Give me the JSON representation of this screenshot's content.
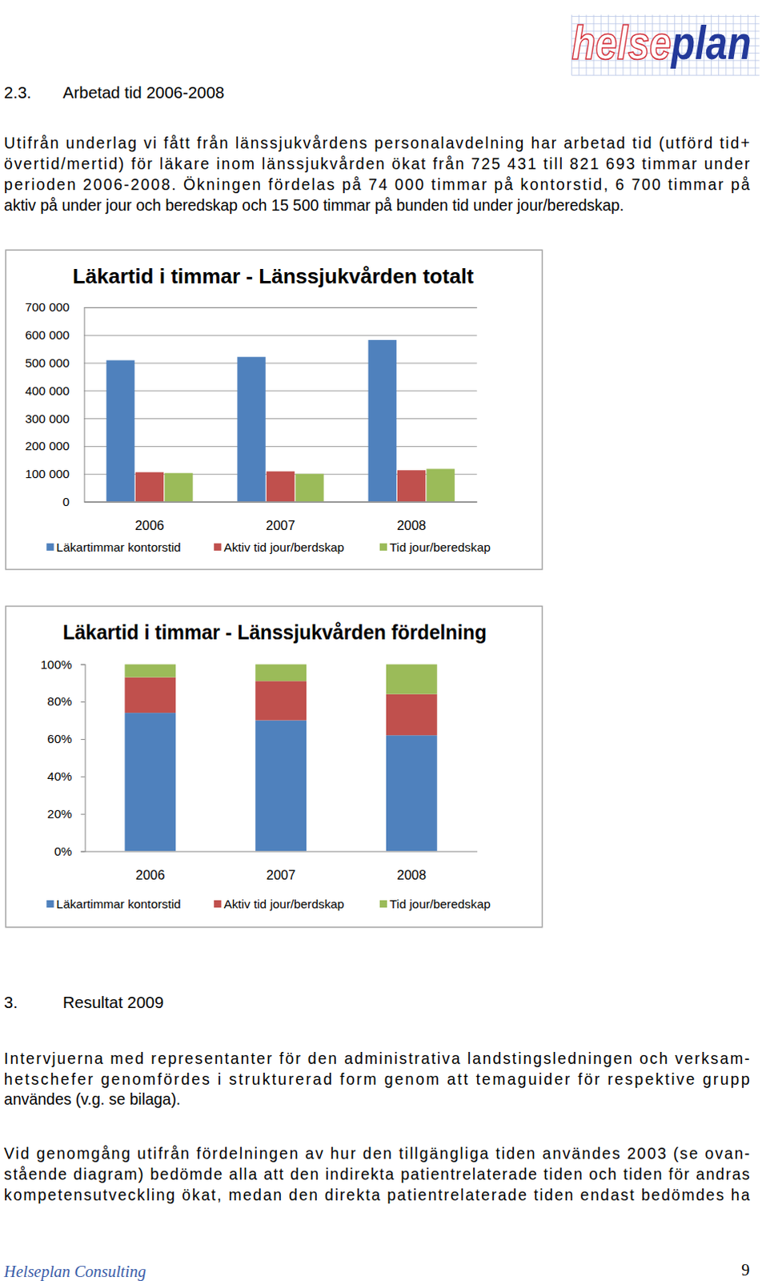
{
  "header": {
    "logo": [
      "helse",
      "plan"
    ]
  },
  "sections": [
    {
      "number": "2.3.",
      "title": "Arbetad tid 2006-2008",
      "paragraphs": [
        [
          "Utifrån underlag vi fått från länssjukvårdens personalavdelning har arbetad tid (utförd tid+",
          "övertid/mertid) för läkare inom länssjukvården ökat från 725 431 till 821 693 timmar under",
          "perioden 2006-2008. Ökningen fördelas på 74 000 timmar på kontorstid, 6 700 timmar på",
          "aktiv på under jour och beredskap och 15 500 timmar på bunden tid under jour/beredskap."
        ]
      ]
    },
    {
      "number": "3.",
      "title": "Resultat 2009",
      "paragraphs": [
        [
          "Intervjuerna med representanter för den administrativa landstingsledningen och verksam-",
          "hetschefer genomfördes i strukturerad form genom att temaguider för respektive grupp",
          "användes (v.g. se bilaga)."
        ],
        [
          "Vid genomgång utifrån fördelningen av hur den tillgängliga tiden användes 2003 (se ovan-",
          "stående diagram) bedömde alla att den indirekta patientrelaterade tiden och tiden för andras",
          "kompetensutveckling ökat, medan den direkta patientrelaterade tiden endast bedömdes ha"
        ]
      ]
    }
  ],
  "chart_data": [
    {
      "type": "bar",
      "title": "Läkartid i timmar - Länssjukvården totalt",
      "categories": [
        "2006",
        "2007",
        "2008"
      ],
      "series": [
        {
          "name": "Läkartimmar kontorstid",
          "color": "#4f81bd",
          "values": [
            509000,
            521000,
            582000
          ]
        },
        {
          "name": "Aktiv tid jour/berdskap",
          "color": "#c0504d",
          "values": [
            106000,
            109000,
            113000
          ]
        },
        {
          "name": "Tid jour/beredskap",
          "color": "#9bbb59",
          "values": [
            103000,
            100000,
            118000
          ]
        }
      ],
      "ylim": [
        0,
        700000
      ],
      "yticks": [
        0,
        {
          "value": 100000,
          "label": "100 000"
        },
        {
          "value": 200000,
          "label": "200 000"
        },
        {
          "value": 300000,
          "label": "300 000"
        },
        {
          "value": 400000,
          "label": "400 000"
        },
        {
          "value": 500000,
          "label": "500 000"
        },
        {
          "value": 600000,
          "label": "600 000"
        },
        {
          "value": 700000,
          "label": "700 000"
        }
      ],
      "grid": true,
      "stacked": false,
      "legend": "bottom"
    },
    {
      "type": "bar",
      "title": "Läkartid i timmar - Länssjukvården fördelning",
      "categories": [
        "2006",
        "2007",
        "2008"
      ],
      "series": [
        {
          "name": "Läkartimmar kontorstid",
          "color": "#4f81bd",
          "values": [
            74,
            70,
            62
          ]
        },
        {
          "name": "Aktiv tid jour/berdskap",
          "color": "#c0504d",
          "values": [
            19,
            21,
            22
          ]
        },
        {
          "name": "Tid jour/beredskap",
          "color": "#9bbb59",
          "values": [
            7,
            9,
            16
          ]
        }
      ],
      "ylim": [
        0,
        100
      ],
      "yticks": [
        {
          "value": 0,
          "label": "0%"
        },
        {
          "value": 20,
          "label": "20%"
        },
        {
          "value": 40,
          "label": "40%"
        },
        {
          "value": 60,
          "label": "60%"
        },
        {
          "value": 80,
          "label": "80%"
        },
        {
          "value": 100,
          "label": "100%"
        }
      ],
      "grid": false,
      "stacked": true,
      "legend": "bottom"
    }
  ],
  "footer": {
    "text": "Helseplan Consulting",
    "page": 9
  }
}
